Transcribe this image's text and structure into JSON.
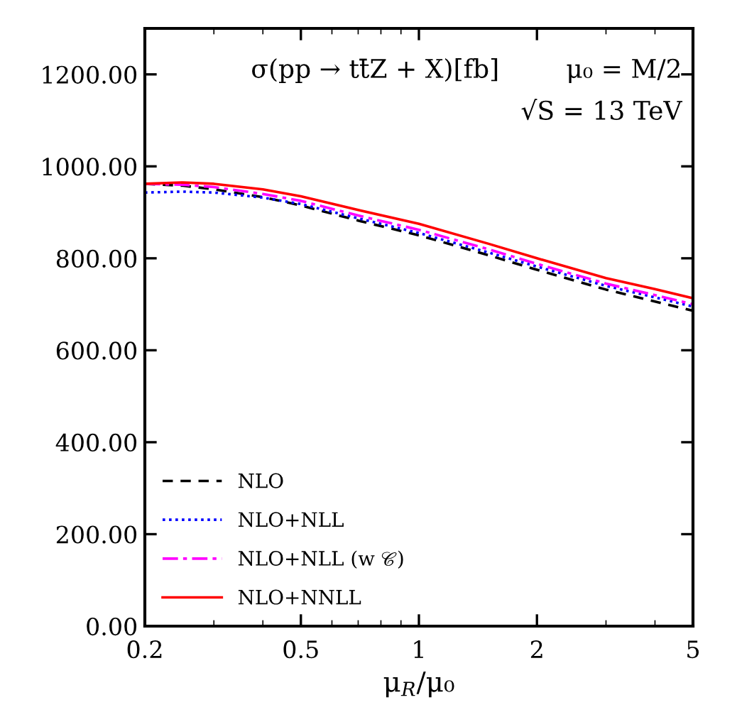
{
  "chart_data": {
    "type": "line",
    "xlabel": "μ$_{R}$/μ₀",
    "x": [
      0.2,
      0.25,
      0.3,
      0.4,
      0.5,
      0.7,
      1,
      1.5,
      2,
      3,
      4,
      5
    ],
    "series": [
      {
        "name": "NLO",
        "color": "#000000",
        "line_style": "dashed",
        "values": [
          962,
          958,
          950,
          933,
          915,
          882,
          850,
          807,
          775,
          732,
          706,
          686
        ]
      },
      {
        "name": "NLO+NLL",
        "color": "#0000ff",
        "line_style": "dotted",
        "values": [
          943,
          945,
          943,
          932,
          918,
          887,
          855,
          813,
          782,
          740,
          715,
          695
        ]
      },
      {
        "name": "NLO+NLL (w 𝒞)",
        "color": "#ff00ff",
        "line_style": "dashdot",
        "values": [
          962,
          960,
          955,
          940,
          925,
          893,
          862,
          820,
          788,
          745,
          720,
          700
        ]
      },
      {
        "name": "NLO+NNLL",
        "color": "#ff0000",
        "line_style": "solid",
        "values": [
          962,
          965,
          962,
          950,
          935,
          905,
          875,
          832,
          800,
          757,
          733,
          713
        ]
      }
    ],
    "log": "x",
    "xlim": [
      0.2,
      5
    ],
    "xticks": [
      0.2,
      0.5,
      1,
      2,
      5
    ],
    "ylim": [
      0,
      1300
    ],
    "yticks": [
      {
        "value": 0,
        "label": "0.00"
      },
      {
        "value": 200,
        "label": "200.00"
      },
      {
        "value": 400,
        "label": "400.00"
      },
      {
        "value": 600,
        "label": "600.00"
      },
      {
        "value": 800,
        "label": "800.00"
      },
      {
        "value": 1000,
        "label": "1000.00"
      },
      {
        "value": 1200,
        "label": "1200.00"
      }
    ],
    "annotations": [
      "σ(pp → tt̄Z + X)[fb]",
      "μ₀ = M/2",
      "√S = 13 TeV"
    ],
    "legend": "bottom left",
    "grid": false
  }
}
